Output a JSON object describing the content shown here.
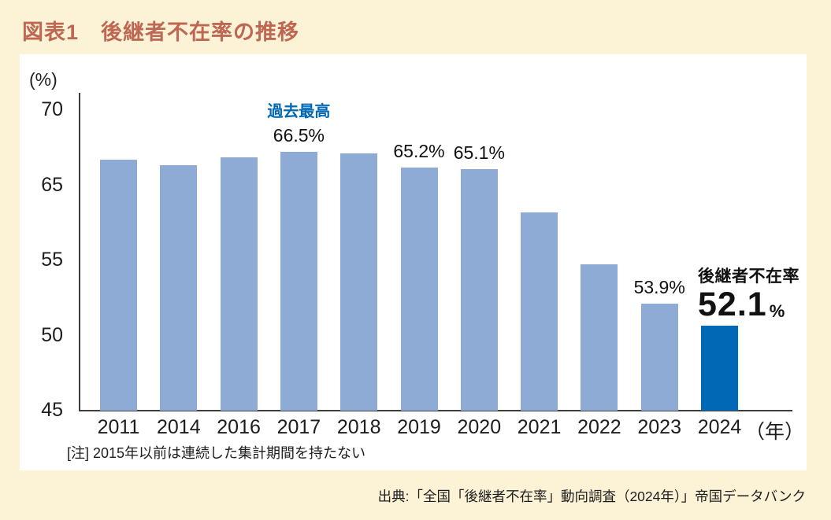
{
  "page": {
    "title": "図表1　後継者不在率の推移",
    "note": "[注] 2015年以前は連続した集計期間を持たない",
    "source": "出典:「全国「後継者不在率」動向調査（2024年）」帝国データバンク",
    "colors": {
      "background": "#FCF2D6",
      "panel": "#FFFFFF",
      "title_text": "#BE6752",
      "bar": "#8EABD6",
      "bar_highlight": "#0068B5",
      "accent_text": "#0068B5"
    }
  },
  "chart_data": {
    "type": "bar",
    "title": "後継者不在率の推移",
    "ylabel_unit": "(%)",
    "x_axis_suffix": "（年）",
    "y_ticks": [
      70,
      65,
      55,
      50,
      45
    ],
    "ylim": [
      45,
      70
    ],
    "grid": false,
    "legend": "none",
    "categories": [
      "2011",
      "2014",
      "2016",
      "2017",
      "2018",
      "2019",
      "2020",
      "2021",
      "2022",
      "2023",
      "2024"
    ],
    "values": [
      65.9,
      65.4,
      66.1,
      66.5,
      66.4,
      65.2,
      65.1,
      61.5,
      57.2,
      53.9,
      52.1
    ],
    "bar_labels": [
      null,
      null,
      null,
      "66.5%",
      null,
      "65.2%",
      "65.1%",
      null,
      null,
      "53.9%",
      null
    ],
    "annotations": {
      "record_high_label": "過去最高",
      "record_high_index": 3,
      "highlight_index": 10,
      "highlight_title": "後継者不在率",
      "highlight_value": "52.1",
      "highlight_unit": "%"
    }
  }
}
